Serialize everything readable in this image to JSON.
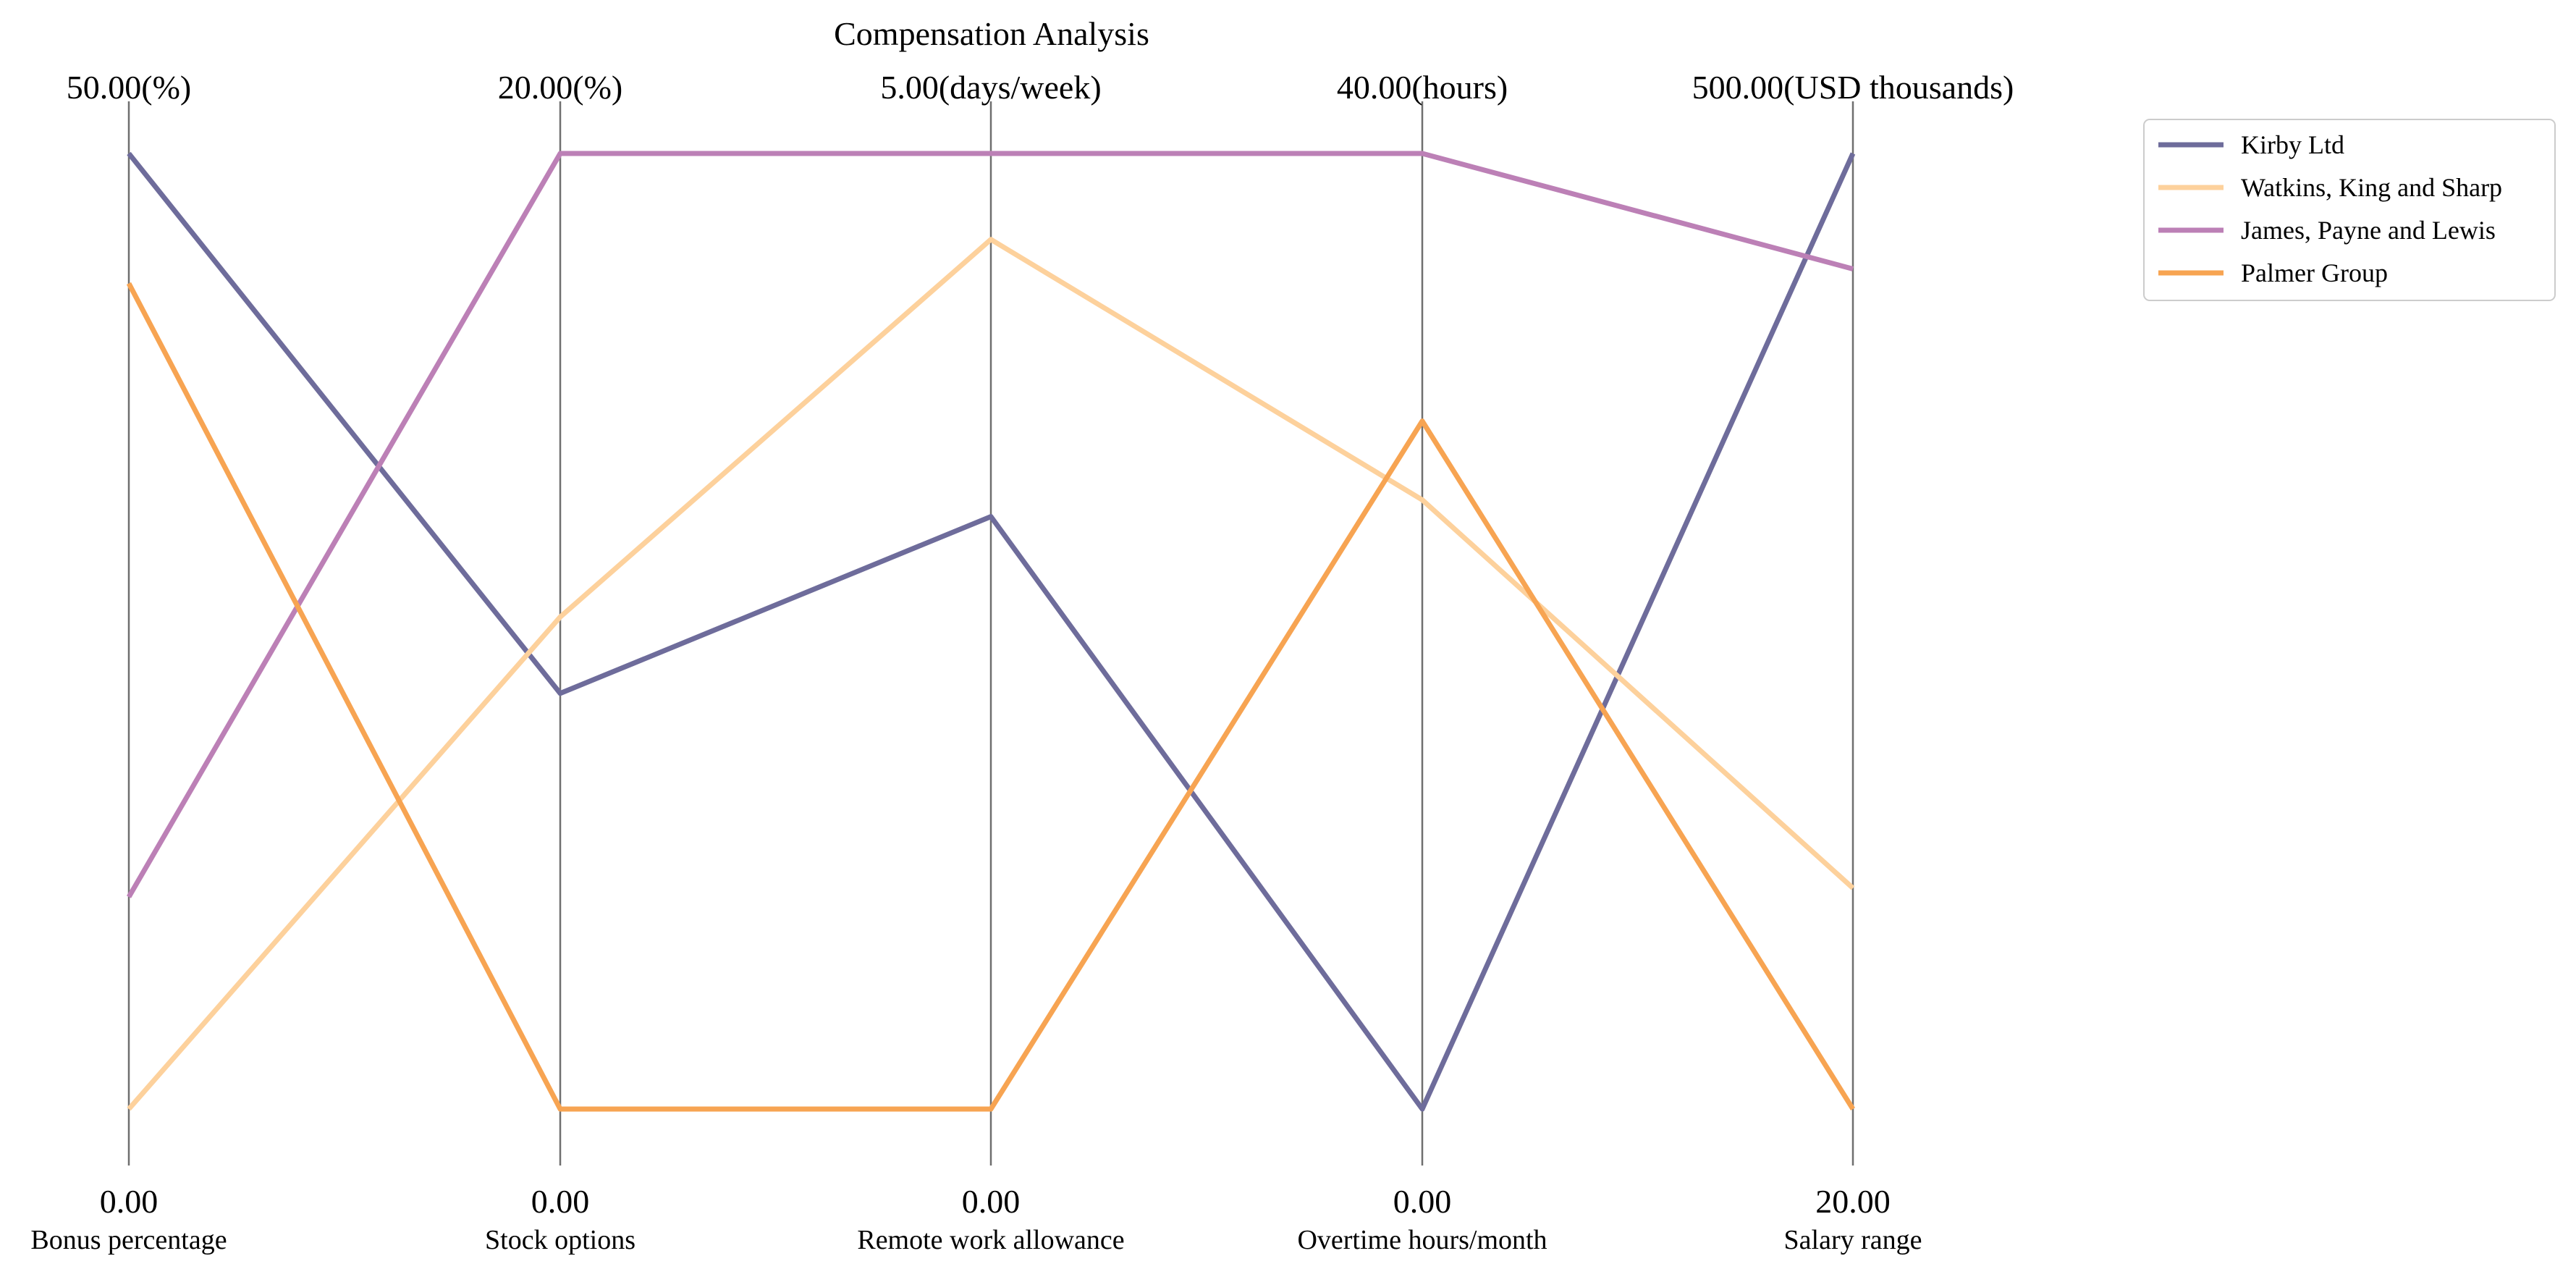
{
  "chart_data": {
    "type": "parallel_coordinates",
    "title": "Compensation Analysis",
    "axes": [
      {
        "label": "Bonus percentage",
        "min": 0,
        "max": 50,
        "min_label": "0.00",
        "max_label": "50.00(%)"
      },
      {
        "label": "Stock options",
        "min": 0,
        "max": 20,
        "min_label": "0.00",
        "max_label": "20.00(%)"
      },
      {
        "label": "Remote work allowance",
        "min": 0,
        "max": 5,
        "min_label": "0.00",
        "max_label": "5.00(days/week)"
      },
      {
        "label": "Overtime hours/month",
        "min": 0,
        "max": 40,
        "min_label": "0.00",
        "max_label": "40.00(hours)"
      },
      {
        "label": "Salary range",
        "min": 20,
        "max": 500,
        "min_label": "20.00",
        "max_label": "500.00(USD thousands)"
      }
    ],
    "series": [
      {
        "name": "Kirby Ltd",
        "color": "#6e6c9b",
        "values": [
          50,
          8.7,
          3.1,
          0,
          500
        ]
      },
      {
        "name": "Watkins, King and Sharp",
        "color": "#fdd19c",
        "values": [
          0,
          10.3,
          4.55,
          25.5,
          131
        ]
      },
      {
        "name": "James, Payne and Lewis",
        "color": "#bc80b6",
        "values": [
          11.1,
          20,
          5,
          40,
          442
        ]
      },
      {
        "name": "Palmer Group",
        "color": "#f7a452",
        "values": [
          43.2,
          0,
          0,
          28.8,
          20
        ]
      }
    ],
    "legend_position": "upper-right outside",
    "grid": false
  }
}
